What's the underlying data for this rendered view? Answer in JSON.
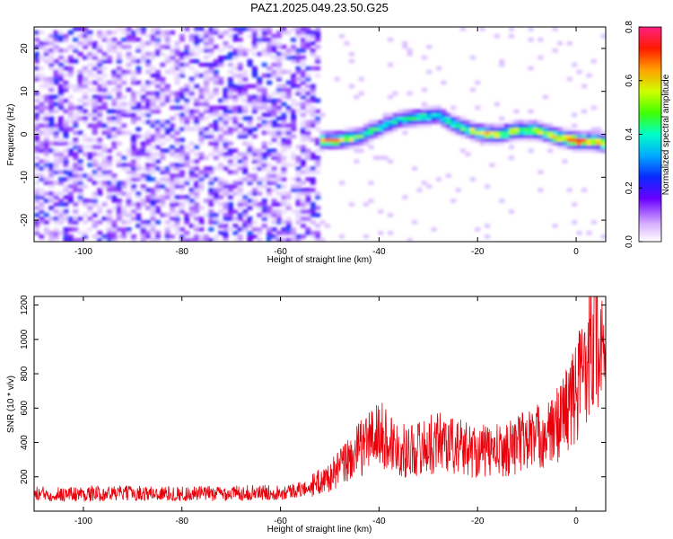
{
  "chart_data": [
    {
      "type": "heatmap",
      "title": "PAZ1.2025.049.23.50.G25",
      "xlabel": "Height of straight line (km)",
      "ylabel": "Frequency (Hz)",
      "xlim": [
        -110,
        6
      ],
      "ylim": [
        -25,
        25
      ],
      "xticks": [
        -100,
        -80,
        -60,
        -40,
        -20,
        0
      ],
      "yticks": [
        -20,
        -10,
        0,
        10,
        20
      ],
      "colorbar": {
        "label": "Normalized spectral amplitude",
        "range": [
          0,
          0.8
        ],
        "ticks": [
          0.0,
          0.2,
          0.4,
          0.6,
          0.8
        ],
        "colors": [
          "#ffffff",
          "#8a2be2",
          "#3b00ff",
          "#0080ff",
          "#00ffff",
          "#00ff40",
          "#a0ff00",
          "#ffff00",
          "#ff8000",
          "#ff0000",
          "#ff1493"
        ]
      },
      "noise_region": {
        "x_range": [
          -110,
          -52
        ],
        "f_range": [
          -25,
          25
        ],
        "amplitude": 0.08
      },
      "ridge": {
        "x": [
          -52,
          -48,
          -44,
          -40,
          -36,
          -32,
          -28,
          -24,
          -20,
          -16,
          -12,
          -8,
          -4,
          0,
          4,
          6
        ],
        "f": [
          -1.5,
          -1.2,
          -0.5,
          1.5,
          3.5,
          4.0,
          4.5,
          2.0,
          0.5,
          0.0,
          1.0,
          1.0,
          -0.5,
          -1.5,
          -1.5,
          -2.0
        ],
        "amplitude": [
          0.55,
          0.55,
          0.45,
          0.35,
          0.3,
          0.35,
          0.35,
          0.4,
          0.5,
          0.5,
          0.45,
          0.5,
          0.55,
          0.65,
          0.6,
          0.55
        ]
      }
    },
    {
      "type": "line",
      "xlabel": "Height of straight line (km)",
      "ylabel": "SNR (10 * v/v)",
      "xlim": [
        -110,
        6
      ],
      "ylim": [
        0,
        1250
      ],
      "xticks": [
        -100,
        -80,
        -60,
        -40,
        -20,
        0
      ],
      "yticks": [
        200,
        400,
        600,
        800,
        1000,
        1200
      ],
      "color": "#e8000b",
      "series": [
        {
          "x": [
            -110,
            -100,
            -90,
            -80,
            -70,
            -60,
            -55,
            -50,
            -45,
            -42,
            -40,
            -35,
            -30,
            -27,
            -25,
            -20,
            -15,
            -10,
            -5,
            -2,
            0,
            2,
            4,
            5,
            6
          ],
          "y": [
            100,
            100,
            105,
            100,
            105,
            110,
            130,
            200,
            330,
            420,
            450,
            350,
            380,
            420,
            380,
            350,
            350,
            420,
            450,
            600,
            680,
            900,
            1150,
            900,
            750
          ]
        }
      ]
    }
  ]
}
